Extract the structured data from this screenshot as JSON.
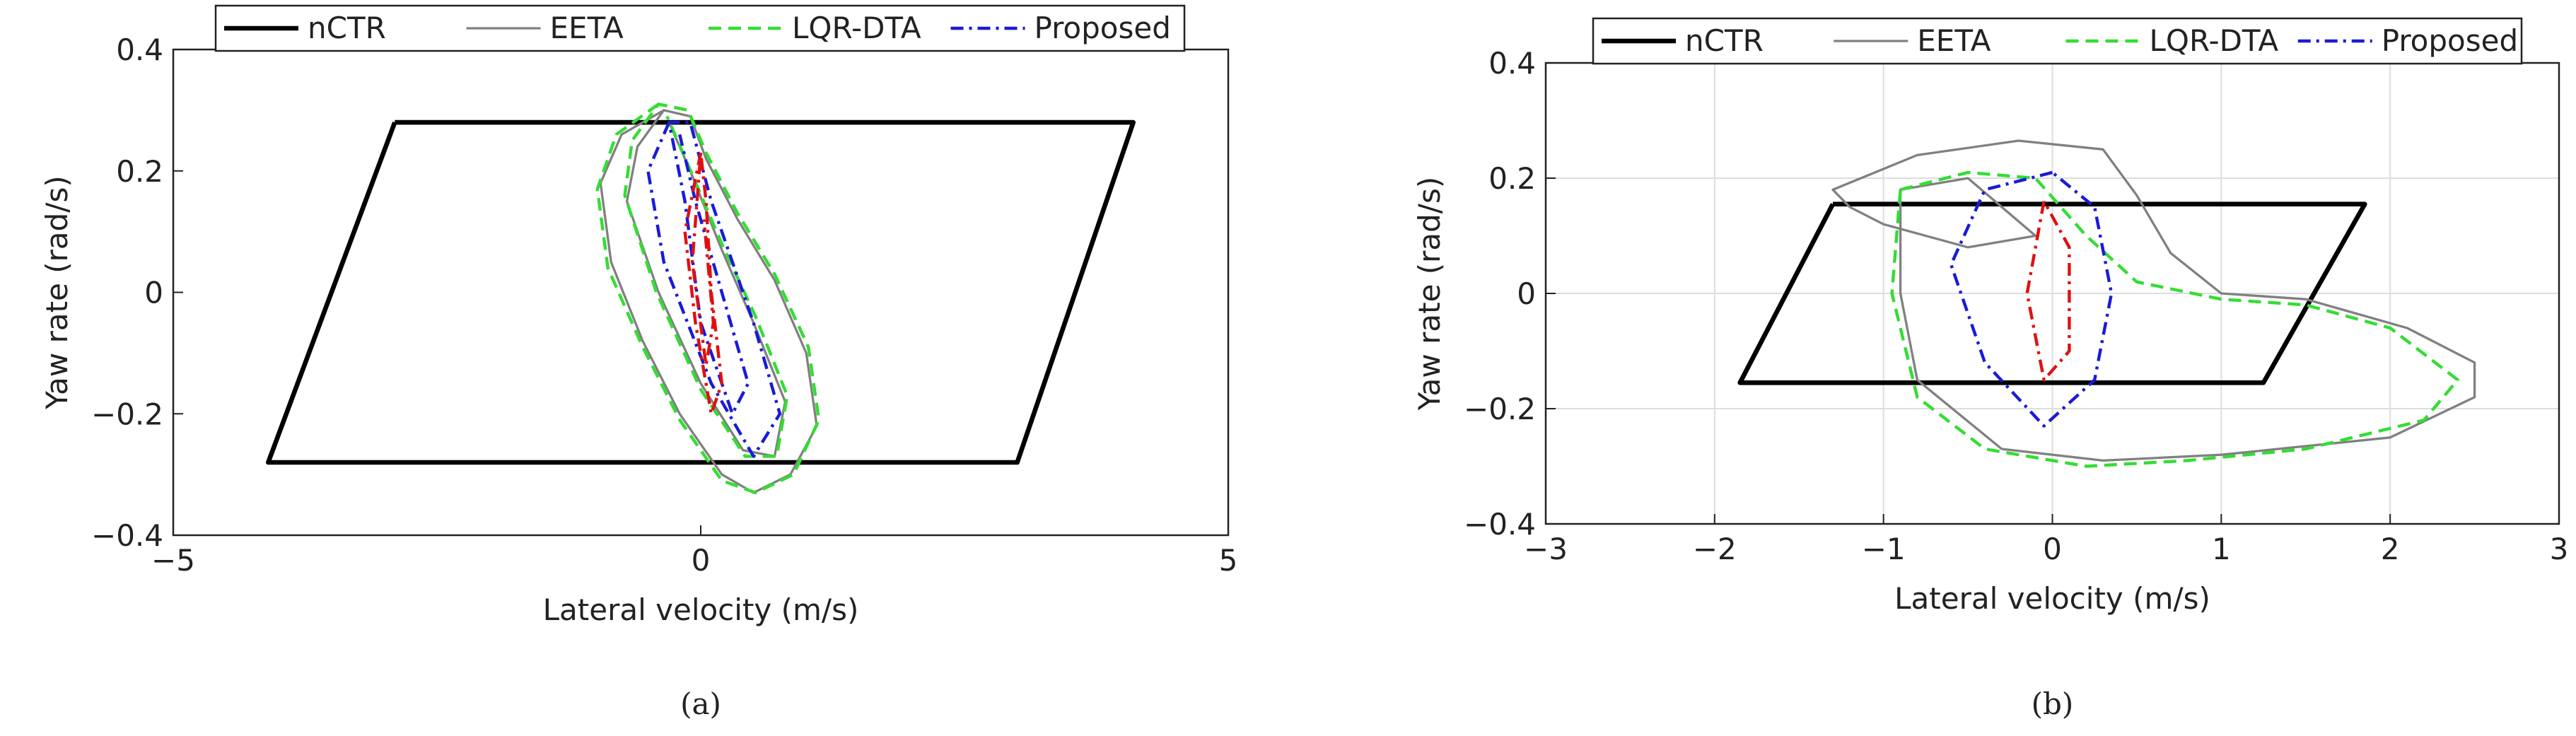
{
  "chart_data": [
    {
      "type": "line",
      "panel": "(a)",
      "xlabel": "Lateral velocity (m/s)",
      "ylabel": "Yaw rate (rad/s)",
      "xlim": [
        -5,
        5
      ],
      "xticks": [
        {
          "value": -5,
          "label": "−5"
        },
        0,
        5
      ],
      "ylim": [
        -0.4,
        0.4
      ],
      "yticks": [
        {
          "value": -0.4,
          "label": "−0.4"
        },
        {
          "value": -0.2,
          "label": "−0.2"
        },
        0,
        0.2,
        0.4
      ],
      "grid": false,
      "legend": "top",
      "series": [
        {
          "name": "nCTR",
          "color": "#000000",
          "dash": "solid",
          "width": 3,
          "x": [
            -2.9,
            4.1,
            3.0,
            -4.1,
            -2.9
          ],
          "values": [
            0.28,
            0.28,
            -0.28,
            -0.28,
            0.28
          ]
        },
        {
          "name": "EETA",
          "color": "#808080",
          "dash": "solid",
          "width": 1.5,
          "x": [
            -0.35,
            -0.75,
            -0.95,
            -0.85,
            -0.55,
            -0.2,
            0.2,
            0.5,
            0.85,
            1.1,
            1.0,
            0.7,
            0.35,
            0.05,
            -0.1,
            -0.35,
            -0.6,
            -0.7,
            -0.4,
            0.0,
            0.4,
            0.7,
            0.8,
            0.5,
            0.2,
            -0.1,
            -0.3
          ],
          "values": [
            0.3,
            0.26,
            0.18,
            0.05,
            -0.08,
            -0.2,
            -0.3,
            -0.33,
            -0.3,
            -0.22,
            -0.1,
            0.02,
            0.12,
            0.22,
            0.29,
            0.3,
            0.24,
            0.15,
            0.0,
            -0.15,
            -0.26,
            -0.27,
            -0.18,
            -0.05,
            0.07,
            0.2,
            0.28
          ]
        },
        {
          "name": "LQR-DTA",
          "color": "#33dd33",
          "dash": "dashed",
          "width": 2,
          "x": [
            -0.4,
            -0.8,
            -0.98,
            -0.88,
            -0.55,
            -0.2,
            0.2,
            0.52,
            0.88,
            1.12,
            1.02,
            0.7,
            0.35,
            0.05,
            -0.12,
            -0.4,
            -0.65,
            -0.72,
            -0.42,
            0.0,
            0.42,
            0.72,
            0.82,
            0.52,
            0.2,
            -0.12,
            -0.32
          ],
          "values": [
            0.31,
            0.26,
            0.17,
            0.04,
            -0.09,
            -0.21,
            -0.31,
            -0.33,
            -0.3,
            -0.21,
            -0.09,
            0.03,
            0.13,
            0.23,
            0.3,
            0.31,
            0.25,
            0.16,
            0.0,
            -0.16,
            -0.27,
            -0.27,
            -0.17,
            -0.04,
            0.08,
            0.21,
            0.29
          ]
        },
        {
          "name": "Proposed",
          "color": "#1a1ad8",
          "dash": "dashdot",
          "width": 2,
          "x": [
            -0.3,
            -0.5,
            -0.35,
            0.1,
            0.5,
            0.75,
            0.5,
            0.1,
            -0.1,
            -0.3,
            -0.15,
            0.0,
            0.3,
            0.45,
            0.2,
            -0.05,
            -0.2
          ],
          "values": [
            0.28,
            0.2,
            0.05,
            -0.15,
            -0.27,
            -0.2,
            -0.05,
            0.15,
            0.28,
            0.28,
            0.15,
            -0.05,
            -0.2,
            -0.15,
            0.0,
            0.15,
            0.26
          ]
        },
        {
          "color": "#e01010",
          "dash": "dashdot",
          "width": 2,
          "x": [
            0.0,
            -0.15,
            -0.05,
            0.1,
            0.2,
            0.1,
            0.05,
            0.0,
            -0.08,
            0.05,
            0.12,
            0.03
          ],
          "values": [
            0.23,
            0.1,
            -0.05,
            -0.2,
            -0.15,
            0.0,
            0.15,
            0.23,
            0.05,
            -0.12,
            -0.05,
            0.12
          ]
        }
      ]
    },
    {
      "type": "line",
      "panel": "(b)",
      "xlabel": "Lateral velocity (m/s)",
      "ylabel": "Yaw rate (rad/s)",
      "xlim": [
        -3,
        3
      ],
      "xticks": [
        {
          "value": -3,
          "label": "−3"
        },
        {
          "value": -2,
          "label": "−2"
        },
        {
          "value": -1,
          "label": "−1"
        },
        0,
        1,
        2,
        3
      ],
      "ylim": [
        -0.4,
        0.4
      ],
      "yticks": [
        {
          "value": -0.4,
          "label": "−0.4"
        },
        {
          "value": -0.2,
          "label": "−0.2"
        },
        0,
        0.2,
        0.4
      ],
      "grid": true,
      "legend": "top",
      "series": [
        {
          "name": "nCTR",
          "color": "#000000",
          "dash": "solid",
          "width": 3,
          "x": [
            -1.3,
            1.85,
            1.25,
            -1.85,
            -1.3
          ],
          "values": [
            0.155,
            0.155,
            -0.155,
            -0.155,
            0.155
          ]
        },
        {
          "name": "EETA",
          "color": "#808080",
          "dash": "solid",
          "width": 1.5,
          "x": [
            -1.2,
            -1.3,
            -0.8,
            -0.2,
            0.3,
            0.5,
            0.7,
            1.0,
            1.5,
            2.1,
            2.5,
            2.5,
            2.0,
            1.0,
            0.3,
            -0.3,
            -0.8,
            -0.9,
            -0.9,
            -0.5,
            -0.1,
            -0.5,
            -1.0,
            -1.2
          ],
          "values": [
            0.15,
            0.18,
            0.24,
            0.265,
            0.25,
            0.17,
            0.07,
            0.0,
            -0.01,
            -0.06,
            -0.12,
            -0.18,
            -0.25,
            -0.28,
            -0.29,
            -0.27,
            -0.15,
            0.0,
            0.18,
            0.2,
            0.1,
            0.08,
            0.12,
            0.15
          ]
        },
        {
          "name": "LQR-DTA",
          "color": "#33dd33",
          "dash": "dashed",
          "width": 2,
          "x": [
            -0.9,
            -0.5,
            -0.1,
            0.2,
            0.5,
            1.0,
            1.5,
            2.0,
            2.4,
            2.2,
            1.5,
            0.8,
            0.2,
            -0.4,
            -0.8,
            -0.95,
            -0.9
          ],
          "values": [
            0.18,
            0.21,
            0.2,
            0.1,
            0.02,
            -0.01,
            -0.02,
            -0.06,
            -0.15,
            -0.22,
            -0.27,
            -0.29,
            -0.3,
            -0.27,
            -0.18,
            0.0,
            0.18
          ]
        },
        {
          "name": "Proposed",
          "color": "#1a1ad8",
          "dash": "dashdot",
          "width": 2,
          "x": [
            0.0,
            -0.4,
            -0.6,
            -0.4,
            -0.05,
            0.25,
            0.35,
            0.25,
            0.0
          ],
          "values": [
            0.21,
            0.18,
            0.05,
            -0.12,
            -0.23,
            -0.15,
            0.0,
            0.15,
            0.21
          ]
        },
        {
          "color": "#e01010",
          "dash": "dashdot",
          "width": 2,
          "x": [
            -0.05,
            -0.15,
            -0.05,
            0.1,
            0.1,
            -0.05
          ],
          "values": [
            0.16,
            0.0,
            -0.15,
            -0.1,
            0.08,
            0.16
          ]
        }
      ]
    }
  ]
}
